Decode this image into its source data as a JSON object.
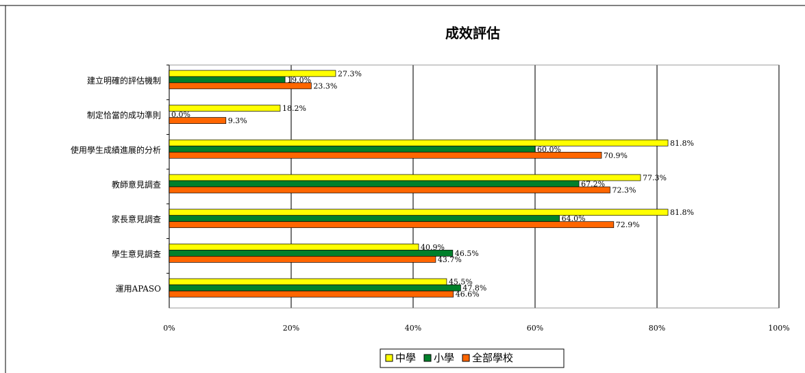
{
  "chart_data": {
    "type": "hbar",
    "title": "成效評估",
    "categories": [
      "建立明確的評估機制",
      "制定恰當的成功準則",
      "使用學生成績進展的分析",
      "教師意見調查",
      "家長意見調查",
      "學生意見調查",
      "運用APASO"
    ],
    "series": [
      {
        "name": "中學",
        "color": "#ffff00",
        "values": [
          27.3,
          18.2,
          81.8,
          77.3,
          81.8,
          40.9,
          45.5
        ],
        "value_labels": [
          "27.3%",
          "18.2%",
          "81.8%",
          "77.3%",
          "81.8%",
          "40.9%",
          "45.5%"
        ]
      },
      {
        "name": "小學",
        "color": "#00802b",
        "values": [
          19.0,
          0.0,
          60.0,
          67.2,
          64.0,
          46.5,
          47.8
        ],
        "value_labels": [
          "19.0%",
          "0.0%",
          "60.0%",
          "67.2%",
          "64.0%",
          "46.5%",
          "47.8%"
        ]
      },
      {
        "name": "全部學校",
        "color": "#ff6600",
        "values": [
          23.3,
          9.3,
          70.9,
          72.3,
          72.9,
          43.7,
          46.6
        ],
        "value_labels": [
          "23.3%",
          "9.3%",
          "70.9%",
          "72.3%",
          "72.9%",
          "43.7%",
          "46.6%"
        ]
      }
    ],
    "xlim": [
      0,
      100
    ],
    "xticks": [
      {
        "value": 0,
        "label": "0%"
      },
      {
        "value": 20,
        "label": "20%"
      },
      {
        "value": 40,
        "label": "40%"
      },
      {
        "value": 60,
        "label": "60%"
      },
      {
        "value": 80,
        "label": "80%"
      },
      {
        "value": 100,
        "label": "100%"
      }
    ],
    "grid": true,
    "legend": "bottom"
  }
}
